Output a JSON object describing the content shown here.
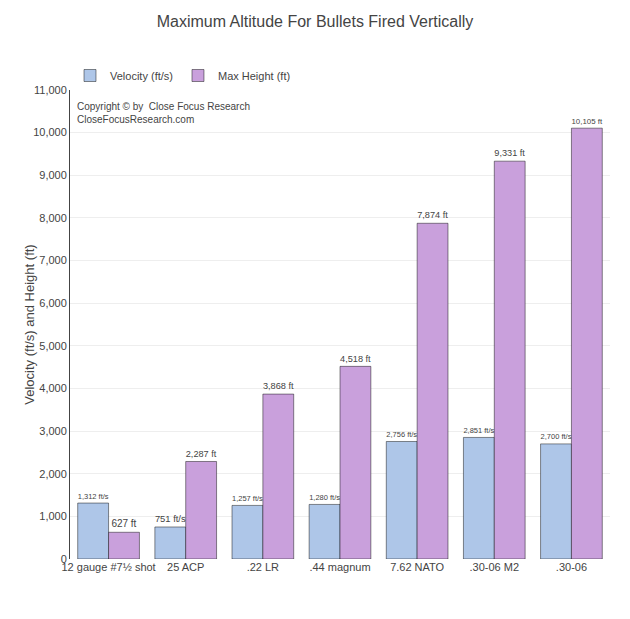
{
  "chart_data": {
    "type": "bar",
    "title": "Maximum Altitude For Bullets Fired Vertically",
    "ylabel": "Velocity (ft/s) and Height (ft)",
    "categories": [
      "12 gauge #7½ shot",
      "25 ACP",
      ".22 LR",
      ".44 magnum",
      "7.62 NATO",
      ".30-06 M2",
      ".30-06"
    ],
    "series": [
      {
        "name": "Velocity (ft/s)",
        "color": "#aec6e8",
        "values": [
          1312,
          751,
          1257,
          1280,
          2756,
          2851,
          2700
        ],
        "value_labels": [
          "1,312 ft/s",
          "751 ft/s",
          "1,257 ft/s",
          "1,280 ft/s",
          "2,756 ft/s",
          "2,851 ft/s",
          "2,700 ft/s"
        ]
      },
      {
        "name": "Max Height (ft)",
        "color": "#c9a0dc",
        "values": [
          627,
          2287,
          3868,
          4518,
          7874,
          9331,
          10105
        ],
        "value_labels": [
          "627 ft",
          "2,287 ft",
          "3,868 ft",
          "4,518 ft",
          "7,874 ft",
          "9,331 ft",
          "10,105 ft"
        ]
      }
    ],
    "ylim": [
      0,
      11000
    ],
    "yticks": [
      0,
      {
        "value": 1000,
        "label": "1,000"
      },
      {
        "value": 2000,
        "label": "2,000"
      },
      {
        "value": 3000,
        "label": "3,000"
      },
      {
        "value": 4000,
        "label": "4,000"
      },
      {
        "value": 5000,
        "label": "5,000"
      },
      {
        "value": 6000,
        "label": "6,000"
      },
      {
        "value": 7000,
        "label": "7,000"
      },
      {
        "value": 8000,
        "label": "8,000"
      },
      {
        "value": 9000,
        "label": "9,000"
      },
      {
        "value": 10000,
        "label": "10,000"
      },
      {
        "value": 11000,
        "label": "11,000"
      }
    ],
    "annotations": [
      "Copyright © by  Close Focus Research\nCloseFocusResearch.com"
    ],
    "grid": true,
    "legend": "top",
    "data_labels": true
  }
}
